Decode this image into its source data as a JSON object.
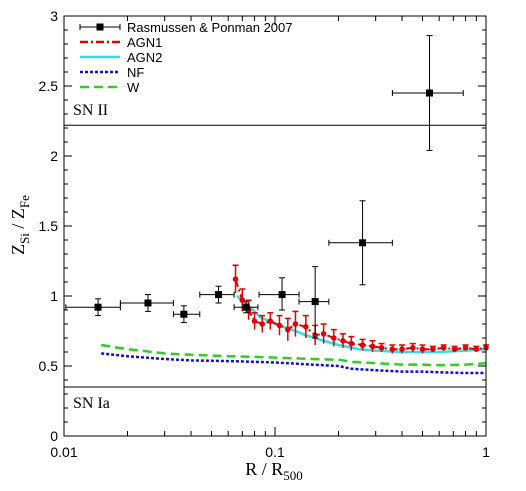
{
  "chart_data": {
    "type": "scatter",
    "xscale": "log",
    "xlim": [
      0.01,
      1
    ],
    "ylim": [
      0,
      3
    ],
    "x_ticks": [
      {
        "value": 0.01,
        "label": "0.01"
      },
      {
        "value": 0.1,
        "label": "0.1"
      },
      {
        "value": 1,
        "label": "1"
      }
    ],
    "y_ticks": [
      {
        "value": 0,
        "label": "0"
      },
      {
        "value": 0.5,
        "label": "0.5"
      },
      {
        "value": 1,
        "label": "1"
      },
      {
        "value": 1.5,
        "label": "1.5"
      },
      {
        "value": 2,
        "label": "2"
      },
      {
        "value": 2.5,
        "label": "2.5"
      },
      {
        "value": 3,
        "label": "3"
      }
    ],
    "xlabel": {
      "main": "R / R",
      "sub": "500"
    },
    "ylabel": {
      "main": "Z",
      "sub1": "Si",
      "mid": " / Z",
      "sub2": "Fe"
    },
    "grid": false,
    "legend_position": "top-left",
    "annotations": [
      {
        "text": "SN II",
        "value": 2.22
      },
      {
        "text": "SN Ia",
        "value": 0.35
      }
    ],
    "observed": {
      "name": "Rasmussen & Ponman 2007",
      "color": "#000000",
      "points": [
        {
          "x": 0.0145,
          "y": 0.92,
          "xlo": 0.0102,
          "xhi": 0.0185,
          "ylo": 0.86,
          "yhi": 0.98
        },
        {
          "x": 0.025,
          "y": 0.95,
          "xlo": 0.0185,
          "xhi": 0.033,
          "ylo": 0.89,
          "yhi": 1.01
        },
        {
          "x": 0.037,
          "y": 0.87,
          "xlo": 0.033,
          "xhi": 0.044,
          "ylo": 0.81,
          "yhi": 0.93
        },
        {
          "x": 0.054,
          "y": 1.01,
          "xlo": 0.044,
          "xhi": 0.064,
          "ylo": 0.95,
          "yhi": 1.07
        },
        {
          "x": 0.073,
          "y": 0.92,
          "xlo": 0.064,
          "xhi": 0.083,
          "ylo": 0.88,
          "yhi": 0.96
        },
        {
          "x": 0.108,
          "y": 1.01,
          "xlo": 0.084,
          "xhi": 0.13,
          "ylo": 0.9,
          "yhi": 1.13
        },
        {
          "x": 0.155,
          "y": 0.96,
          "xlo": 0.13,
          "xhi": 0.18,
          "ylo": 0.7,
          "yhi": 1.21
        },
        {
          "x": 0.26,
          "y": 1.38,
          "xlo": 0.18,
          "xhi": 0.36,
          "ylo": 1.08,
          "yhi": 1.68
        },
        {
          "x": 0.54,
          "y": 2.45,
          "xlo": 0.36,
          "xhi": 0.78,
          "ylo": 2.04,
          "yhi": 2.86
        }
      ]
    },
    "series": [
      {
        "name": "AGN1",
        "color": "#e00000",
        "dash": "8,3,2,3",
        "markers": true,
        "x": [
          0.065,
          0.07,
          0.075,
          0.08,
          0.087,
          0.095,
          0.105,
          0.115,
          0.125,
          0.14,
          0.155,
          0.17,
          0.19,
          0.21,
          0.23,
          0.26,
          0.29,
          0.32,
          0.36,
          0.4,
          0.45,
          0.5,
          0.56,
          0.63,
          0.71,
          0.8,
          0.9,
          1.0
        ],
        "y": [
          1.12,
          0.97,
          0.9,
          0.82,
          0.8,
          0.82,
          0.79,
          0.76,
          0.8,
          0.78,
          0.72,
          0.73,
          0.7,
          0.68,
          0.66,
          0.65,
          0.64,
          0.63,
          0.62,
          0.62,
          0.63,
          0.62,
          0.62,
          0.63,
          0.62,
          0.63,
          0.62,
          0.63
        ],
        "err": [
          0.1,
          0.08,
          0.07,
          0.06,
          0.06,
          0.06,
          0.07,
          0.08,
          0.09,
          0.08,
          0.07,
          0.07,
          0.06,
          0.05,
          0.05,
          0.04,
          0.04,
          0.03,
          0.03,
          0.03,
          0.03,
          0.03,
          0.02,
          0.02,
          0.02,
          0.02,
          0.02,
          0.02
        ]
      },
      {
        "name": "AGN2",
        "color": "#33dde8",
        "dash": "",
        "markers": false,
        "x": [
          0.066,
          0.075,
          0.085,
          0.1,
          0.12,
          0.14,
          0.17,
          0.2,
          0.25,
          0.3,
          0.4,
          0.5,
          0.6,
          0.8,
          1.0
        ],
        "y": [
          1.0,
          0.93,
          0.85,
          0.8,
          0.76,
          0.72,
          0.68,
          0.65,
          0.62,
          0.61,
          0.6,
          0.6,
          0.6,
          0.61,
          0.62
        ]
      },
      {
        "name": "NF",
        "color": "#1010c8",
        "dash": "3,2",
        "markers": false,
        "x": [
          0.015,
          0.02,
          0.03,
          0.04,
          0.06,
          0.08,
          0.1,
          0.15,
          0.2,
          0.23,
          0.3,
          0.4,
          0.5,
          0.6,
          0.8,
          1.0
        ],
        "y": [
          0.59,
          0.57,
          0.55,
          0.54,
          0.535,
          0.53,
          0.525,
          0.51,
          0.5,
          0.48,
          0.47,
          0.46,
          0.46,
          0.455,
          0.45,
          0.45
        ]
      },
      {
        "name": "W",
        "color": "#33cc22",
        "dash": "9,5",
        "markers": false,
        "x": [
          0.015,
          0.02,
          0.03,
          0.04,
          0.06,
          0.08,
          0.1,
          0.15,
          0.2,
          0.23,
          0.3,
          0.4,
          0.5,
          0.6,
          0.8,
          1.0
        ],
        "y": [
          0.65,
          0.62,
          0.59,
          0.58,
          0.57,
          0.565,
          0.56,
          0.55,
          0.545,
          0.53,
          0.52,
          0.51,
          0.51,
          0.505,
          0.51,
          0.52
        ]
      }
    ]
  }
}
